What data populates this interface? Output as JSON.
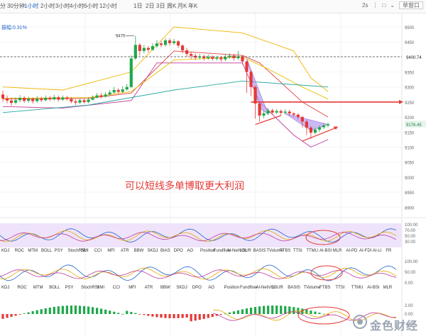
{
  "toolbar": {
    "timeframes": [
      "分",
      "30分钟",
      "1小时",
      "2小时",
      "3小时",
      "4小时",
      "6小时",
      "12小时",
      "1日",
      "2日",
      "3日",
      "周K",
      "月K",
      "年K"
    ],
    "active": "1小时",
    "right_items": [
      "2s",
      "⋮",
      "□",
      "⌄"
    ],
    "mode": "单窗口"
  },
  "main_label": "振幅:0.31%",
  "chart_data": {
    "type": "candlestick",
    "price_axis": {
      "range": [
        8870,
        9540
      ],
      "ticks": [
        9500,
        9450,
        9400,
        9350,
        9300,
        9250,
        9200,
        9150,
        9100,
        9050,
        9000,
        8950,
        8900
      ],
      "current_label": "9400.74",
      "last_price_label": "9176.45"
    },
    "high_marker": {
      "label": "9470",
      "value": 9470
    },
    "annotation": "可以短线多单博取更大利润",
    "candles": [
      [
        9275,
        9262,
        9288,
        9252
      ],
      [
        9262,
        9255,
        9272,
        9246
      ],
      [
        9255,
        9247,
        9265,
        9238
      ],
      [
        9248,
        9256,
        9266,
        9242
      ],
      [
        9256,
        9264,
        9273,
        9250
      ],
      [
        9264,
        9254,
        9270,
        9247
      ],
      [
        9254,
        9260,
        9268,
        9249
      ],
      [
        9260,
        9253,
        9266,
        9245
      ],
      [
        9253,
        9261,
        9270,
        9248
      ],
      [
        9261,
        9256,
        9268,
        9250
      ],
      [
        9256,
        9264,
        9272,
        9252
      ],
      [
        9264,
        9259,
        9270,
        9253
      ],
      [
        9259,
        9266,
        9274,
        9255
      ],
      [
        9266,
        9258,
        9272,
        9252
      ],
      [
        9258,
        9265,
        9272,
        9254
      ],
      [
        9265,
        9260,
        9270,
        9255
      ],
      [
        9260,
        9252,
        9266,
        9246
      ],
      [
        9252,
        9248,
        9258,
        9240
      ],
      [
        9248,
        9256,
        9262,
        9244
      ],
      [
        9256,
        9250,
        9262,
        9245
      ],
      [
        9250,
        9258,
        9266,
        9246
      ],
      [
        9258,
        9265,
        9272,
        9255
      ],
      [
        9265,
        9272,
        9280,
        9262
      ],
      [
        9272,
        9268,
        9280,
        9262
      ],
      [
        9268,
        9275,
        9283,
        9265
      ],
      [
        9275,
        9282,
        9290,
        9272
      ],
      [
        9282,
        9290,
        9300,
        9278
      ],
      [
        9290,
        9284,
        9296,
        9278
      ],
      [
        9284,
        9292,
        9302,
        9280
      ],
      [
        9292,
        9300,
        9310,
        9288
      ],
      [
        9300,
        9395,
        9405,
        9296
      ],
      [
        9395,
        9440,
        9470,
        9390
      ],
      [
        9440,
        9420,
        9446,
        9405
      ],
      [
        9420,
        9430,
        9440,
        9412
      ],
      [
        9430,
        9424,
        9436,
        9415
      ],
      [
        9424,
        9436,
        9445,
        9420
      ],
      [
        9436,
        9445,
        9456,
        9430
      ],
      [
        9445,
        9440,
        9452,
        9432
      ],
      [
        9440,
        9455,
        9462,
        9434
      ],
      [
        9455,
        9446,
        9462,
        9438
      ],
      [
        9446,
        9452,
        9460,
        9440
      ],
      [
        9452,
        9438,
        9456,
        9430
      ],
      [
        9438,
        9422,
        9442,
        9412
      ],
      [
        9422,
        9410,
        9430,
        9400
      ],
      [
        9410,
        9404,
        9418,
        9394
      ],
      [
        9404,
        9398,
        9412,
        9390
      ],
      [
        9398,
        9402,
        9410,
        9392
      ],
      [
        9402,
        9396,
        9408,
        9388
      ],
      [
        9396,
        9400,
        9408,
        9390
      ],
      [
        9400,
        9394,
        9405,
        9388
      ],
      [
        9394,
        9398,
        9404,
        9388
      ],
      [
        9398,
        9392,
        9402,
        9384
      ],
      [
        9392,
        9400,
        9410,
        9386
      ],
      [
        9400,
        9404,
        9412,
        9394
      ],
      [
        9404,
        9396,
        9410,
        9388
      ],
      [
        9396,
        9402,
        9420,
        9390
      ],
      [
        9402,
        9385,
        9406,
        9375
      ],
      [
        9385,
        9350,
        9388,
        9280
      ],
      [
        9350,
        9300,
        9355,
        9270
      ],
      [
        9300,
        9245,
        9305,
        9195
      ],
      [
        9245,
        9205,
        9250,
        9185
      ],
      [
        9205,
        9212,
        9222,
        9196
      ],
      [
        9212,
        9222,
        9230,
        9206
      ],
      [
        9222,
        9215,
        9228,
        9208
      ],
      [
        9215,
        9220,
        9226,
        9210
      ],
      [
        9220,
        9214,
        9225,
        9206
      ],
      [
        9214,
        9218,
        9226,
        9208
      ],
      [
        9218,
        9212,
        9224,
        9204
      ],
      [
        9212,
        9208,
        9216,
        9200
      ],
      [
        9208,
        9200,
        9212,
        9192
      ],
      [
        9200,
        9185,
        9204,
        9165
      ],
      [
        9185,
        9165,
        9190,
        9140
      ],
      [
        9165,
        9148,
        9170,
        9128
      ],
      [
        9148,
        9158,
        9165,
        9142
      ],
      [
        9158,
        9166,
        9172,
        9150
      ],
      [
        9166,
        9172,
        9180,
        9160
      ],
      [
        9172,
        9176,
        9182,
        9166
      ]
    ],
    "overlays": [
      {
        "name": "upper-band",
        "color": "#f0b400",
        "values": [
          [
            0,
            9300
          ],
          [
            14,
            9290
          ],
          [
            30,
            9350
          ],
          [
            40,
            9500
          ],
          [
            56,
            9480
          ],
          [
            60,
            9460
          ],
          [
            68,
            9420
          ],
          [
            72,
            9330
          ],
          [
            76,
            9285
          ]
        ]
      },
      {
        "name": "lower-band",
        "color": "#c0399a",
        "values": [
          [
            0,
            9235
          ],
          [
            14,
            9230
          ],
          [
            30,
            9255
          ],
          [
            36,
            9380
          ],
          [
            56,
            9380
          ],
          [
            60,
            9250
          ],
          [
            68,
            9140
          ],
          [
            72,
            9100
          ],
          [
            76,
            9125
          ]
        ]
      },
      {
        "name": "ma-red",
        "color": "#e04040",
        "values": [
          [
            0,
            9260
          ],
          [
            20,
            9262
          ],
          [
            30,
            9280
          ],
          [
            40,
            9420
          ],
          [
            56,
            9405
          ],
          [
            60,
            9380
          ],
          [
            70,
            9250
          ],
          [
            76,
            9200
          ]
        ]
      },
      {
        "name": "ma-yellow",
        "color": "#e6c200",
        "values": [
          [
            0,
            9262
          ],
          [
            20,
            9265
          ],
          [
            30,
            9285
          ],
          [
            40,
            9390
          ],
          [
            56,
            9400
          ],
          [
            62,
            9360
          ],
          [
            70,
            9300
          ],
          [
            76,
            9260
          ]
        ]
      },
      {
        "name": "ma-teal",
        "color": "#24a8a0",
        "values": [
          [
            0,
            9215
          ],
          [
            20,
            9240
          ],
          [
            40,
            9290
          ],
          [
            56,
            9320
          ],
          [
            66,
            9310
          ],
          [
            76,
            9300
          ]
        ]
      }
    ],
    "horizontal_levels": [
      {
        "value": 9400.74,
        "style": "dashed",
        "color": "#444444"
      },
      {
        "value": 9250,
        "style": "solid-arrow",
        "color": "#e53935"
      }
    ]
  },
  "indicator_bars": [
    {
      "items": [
        "KDJ",
        "ROC",
        "MTM",
        "BOLL",
        "PSY",
        "StochRSI",
        "SMI",
        "CCI",
        "MFI",
        "ATR",
        "BBW",
        "SKDJ",
        "BIAS",
        "DPO",
        "AO",
        "Position",
        "Fundflow",
        "AI-NetVOL",
        "LSUR",
        "BASIS",
        "TVolume",
        "FTBS",
        "TTSI",
        "TTMU",
        "AI-BSI",
        "MLR",
        "AI-PD",
        "AI-FDI",
        "AI-LI",
        "FR"
      ]
    },
    {
      "items": [
        "KDJ",
        "ROC",
        "MTM",
        "BOLL",
        "PSY",
        "StochRSI",
        "SMI",
        "CCI",
        "MFI",
        "ATR",
        "BBW",
        "SKDJ",
        "DPO",
        "AO",
        "Position",
        "Fundflow",
        "AI-NetVOL",
        "LSUR",
        "BASIS",
        "TVolume",
        "FTBS",
        "TTSI",
        "TTMU",
        "AI-BSI",
        "MLR"
      ]
    }
  ],
  "sub_panels": [
    {
      "name": "oscillator-1",
      "ticks": [
        "100.00",
        "70.00",
        "50.00",
        "30.00"
      ]
    },
    {
      "name": "oscillator-2",
      "ticks": [
        "100.00",
        "50.00",
        "0.00"
      ]
    },
    {
      "name": "histogram",
      "ticks": [
        "2.00",
        "0.00",
        "-2.00"
      ]
    }
  ],
  "watermark": "金色财经",
  "colors": {
    "up": "#1fa84a",
    "down": "#e53935",
    "accent": "#1e63c8",
    "purple": "#8a5ae0",
    "band_fill": "#efe3fb"
  }
}
